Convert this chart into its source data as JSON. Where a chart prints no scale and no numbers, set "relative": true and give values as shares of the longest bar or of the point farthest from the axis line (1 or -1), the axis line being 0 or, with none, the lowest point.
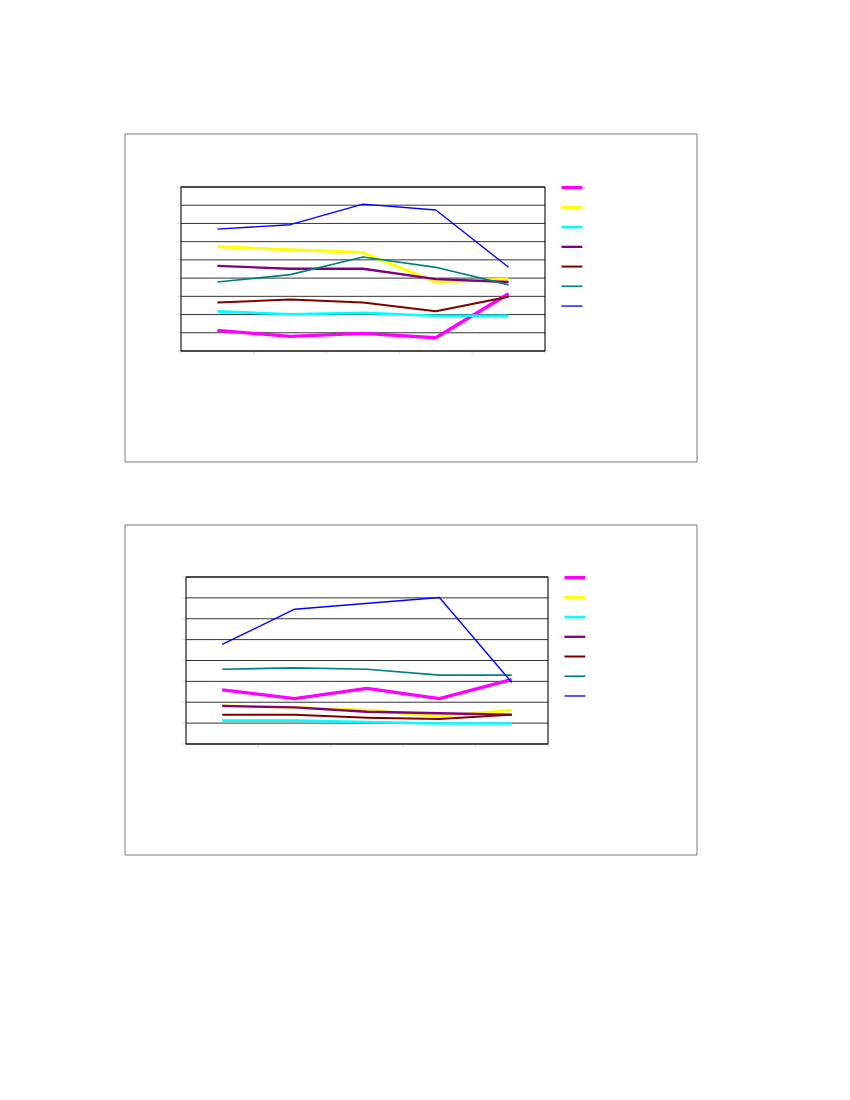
{
  "chart_data": [
    {
      "type": "line",
      "relative": true,
      "categories": [
        null,
        null,
        null,
        null,
        null
      ],
      "grid": "y",
      "marker": "none",
      "line_style": "solid",
      "series": [
        {
          "color": "#ff00ff",
          "values": [
            0.14,
            0.1,
            0.12,
            0.09,
            0.39
          ]
        },
        {
          "color": "#ffff00",
          "values": [
            0.71,
            0.69,
            0.67,
            0.47,
            0.49
          ]
        },
        {
          "color": "#00ffff",
          "values": [
            0.27,
            0.25,
            0.26,
            0.24,
            0.24
          ]
        },
        {
          "color": "#800080",
          "values": [
            0.58,
            0.56,
            0.56,
            0.49,
            0.47
          ]
        },
        {
          "color": "#800000",
          "values": [
            0.33,
            0.35,
            0.33,
            0.27,
            0.37
          ]
        },
        {
          "color": "#008080",
          "values": [
            0.47,
            0.52,
            0.64,
            0.57,
            0.45
          ]
        },
        {
          "color": "#0000ff",
          "values": [
            0.83,
            0.86,
            1,
            0.96,
            0.57
          ]
        }
      ]
    },
    {
      "type": "line",
      "relative": true,
      "categories": [
        null,
        null,
        null,
        null,
        null
      ],
      "grid": "y",
      "marker": "none",
      "line_style": "solid",
      "series": [
        {
          "color": "#ff00ff",
          "values": [
            0.37,
            0.31,
            0.38,
            0.31,
            0.44
          ]
        },
        {
          "color": "#ffff00",
          "values": [
            0.26,
            0.25,
            0.23,
            0.19,
            0.23
          ]
        },
        {
          "color": "#00ffff",
          "values": [
            0.16,
            0.16,
            0.15,
            0.14,
            0.14
          ]
        },
        {
          "color": "#800080",
          "values": [
            0.26,
            0.25,
            0.22,
            0.21,
            0.2
          ]
        },
        {
          "color": "#800000",
          "values": [
            0.2,
            0.2,
            0.18,
            0.17,
            0.2
          ]
        },
        {
          "color": "#008080",
          "values": [
            0.51,
            0.52,
            0.51,
            0.47,
            0.47
          ]
        },
        {
          "color": "#0000ff",
          "values": [
            0.68,
            0.92,
            0.96,
            1,
            0.42
          ]
        }
      ]
    }
  ]
}
